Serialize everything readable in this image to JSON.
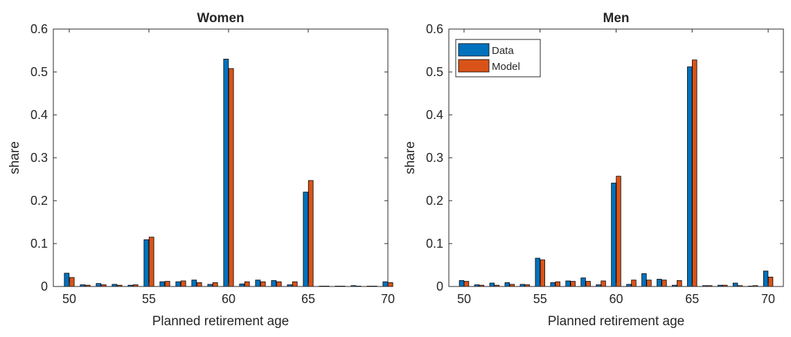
{
  "colors": {
    "data": "#0072BD",
    "model": "#D95319",
    "axis": "#262626"
  },
  "chart_data": [
    {
      "type": "bar",
      "title": "Women",
      "xlabel": "Planned retirement age",
      "ylabel": "share",
      "xlim": [
        49,
        70
      ],
      "ylim": [
        0,
        0.6
      ],
      "xticks": [
        "50",
        "55",
        "60",
        "65",
        "70"
      ],
      "yticks": [
        "0",
        "0.1",
        "0.2",
        "0.3",
        "0.4",
        "0.5",
        "0.6"
      ],
      "grid": false,
      "legend": null,
      "categories": [
        50,
        51,
        52,
        53,
        54,
        55,
        56,
        57,
        58,
        59,
        60,
        61,
        62,
        63,
        64,
        65,
        66,
        67,
        68,
        69,
        70
      ],
      "series": [
        {
          "name": "Data",
          "values": [
            0.031,
            0.004,
            0.007,
            0.005,
            0.003,
            0.109,
            0.011,
            0.011,
            0.015,
            0.005,
            0.53,
            0.006,
            0.015,
            0.014,
            0.004,
            0.22,
            0.0005,
            0.0005,
            0.002,
            0.0005,
            0.011
          ]
        },
        {
          "name": "Model",
          "values": [
            0.021,
            0.003,
            0.004,
            0.003,
            0.004,
            0.115,
            0.012,
            0.013,
            0.009,
            0.009,
            0.508,
            0.011,
            0.011,
            0.011,
            0.011,
            0.247,
            0.0005,
            0.0005,
            0.0005,
            0.0005,
            0.009
          ]
        }
      ]
    },
    {
      "type": "bar",
      "title": "Men",
      "xlabel": "Planned retirement age",
      "ylabel": "share",
      "xlim": [
        49,
        71
      ],
      "ylim": [
        0,
        0.6
      ],
      "xticks": [
        "50",
        "55",
        "60",
        "65",
        "70"
      ],
      "yticks": [
        "0",
        "0.1",
        "0.2",
        "0.3",
        "0.4",
        "0.5",
        "0.6"
      ],
      "grid": false,
      "legend": "top-left",
      "categories": [
        50,
        51,
        52,
        53,
        54,
        55,
        56,
        57,
        58,
        59,
        60,
        61,
        62,
        63,
        64,
        65,
        66,
        67,
        68,
        69,
        70
      ],
      "series": [
        {
          "name": "Data",
          "values": [
            0.014,
            0.004,
            0.008,
            0.009,
            0.005,
            0.066,
            0.009,
            0.013,
            0.02,
            0.004,
            0.241,
            0.005,
            0.03,
            0.017,
            0.003,
            0.512,
            0.002,
            0.003,
            0.008,
            0.001,
            0.036
          ]
        },
        {
          "name": "Model",
          "values": [
            0.012,
            0.003,
            0.003,
            0.005,
            0.004,
            0.062,
            0.011,
            0.012,
            0.012,
            0.013,
            0.257,
            0.015,
            0.015,
            0.015,
            0.014,
            0.528,
            0.002,
            0.003,
            0.002,
            0.002,
            0.022
          ]
        }
      ]
    }
  ]
}
